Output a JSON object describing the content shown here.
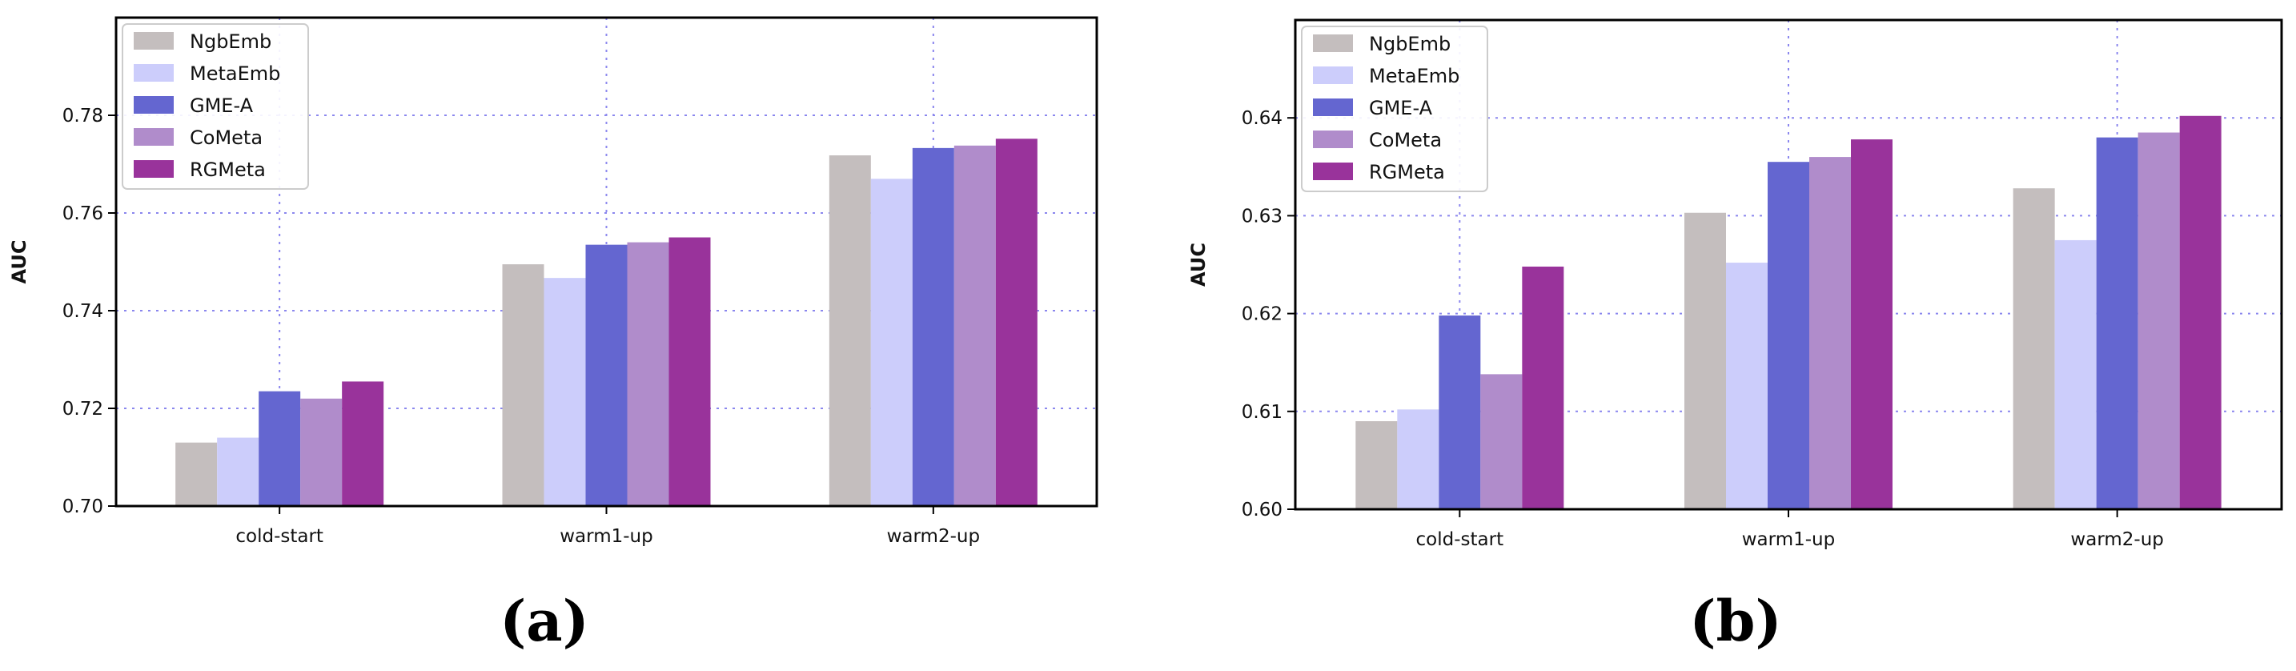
{
  "chart_data": [
    {
      "type": "bar",
      "panel_label": "(a)",
      "ylabel": "AUC",
      "xlabel": "",
      "ylim": [
        0.7,
        0.8
      ],
      "yticks": [
        "0.70",
        "0.72",
        "0.74",
        "0.76",
        "0.78"
      ],
      "ytick_values": [
        0.7,
        0.72,
        0.74,
        0.76,
        0.78
      ],
      "categories": [
        "cold-start",
        "warm1-up",
        "warm2-up"
      ],
      "grid": true,
      "legend_position": "top-left",
      "series": [
        {
          "name": "NgbEmb",
          "values": [
            0.713,
            0.7495,
            0.7718
          ]
        },
        {
          "name": "MetaEmb",
          "values": [
            0.714,
            0.7467,
            0.767
          ]
        },
        {
          "name": "GME-A",
          "values": [
            0.7235,
            0.7535,
            0.7733
          ]
        },
        {
          "name": "CoMeta",
          "values": [
            0.722,
            0.754,
            0.7738
          ]
        },
        {
          "name": "RGMeta",
          "values": [
            0.7255,
            0.755,
            0.7752
          ]
        }
      ]
    },
    {
      "type": "bar",
      "panel_label": "(b)",
      "ylabel": "AUC",
      "xlabel": "",
      "ylim": [
        0.6,
        0.65
      ],
      "yticks": [
        "0.60",
        "0.61",
        "0.62",
        "0.63",
        "0.64"
      ],
      "ytick_values": [
        0.6,
        0.61,
        0.62,
        0.63,
        0.64
      ],
      "categories": [
        "cold-start",
        "warm1-up",
        "warm2-up"
      ],
      "grid": true,
      "legend_position": "top-left",
      "series": [
        {
          "name": "NgbEmb",
          "values": [
            0.609,
            0.6303,
            0.6328
          ]
        },
        {
          "name": "MetaEmb",
          "values": [
            0.6102,
            0.6252,
            0.6275
          ]
        },
        {
          "name": "GME-A",
          "values": [
            0.6198,
            0.6355,
            0.638
          ]
        },
        {
          "name": "CoMeta",
          "values": [
            0.6138,
            0.636,
            0.6385
          ]
        },
        {
          "name": "RGMeta",
          "values": [
            0.6248,
            0.6378,
            0.6402
          ]
        }
      ]
    }
  ],
  "colors": [
    "#c4bebe",
    "#cccdfb",
    "#6466d0",
    "#b08ccb",
    "#99339b"
  ]
}
